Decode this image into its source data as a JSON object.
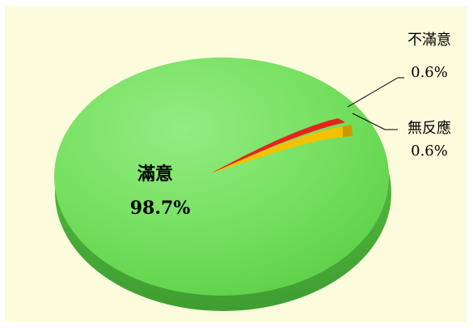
{
  "chart_data": {
    "type": "pie",
    "title": "",
    "slices": [
      {
        "label": "滿意",
        "value": 98.7,
        "value_label": "98.7%",
        "color": "#6fdc5a"
      },
      {
        "label": "不滿意",
        "value": 0.6,
        "value_label": "0.6%",
        "color": "#e8231b"
      },
      {
        "label": "無反應",
        "value": 0.6,
        "value_label": "0.6%",
        "color": "#f2c200"
      }
    ],
    "style": "3d",
    "background": "#fcfcdc"
  }
}
